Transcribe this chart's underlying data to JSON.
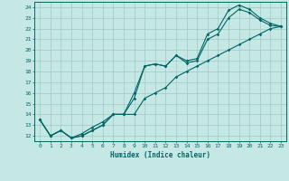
{
  "title": "",
  "xlabel": "Humidex (Indice chaleur)",
  "bg_color": "#c5e8e5",
  "grid_color": "#9dc8c4",
  "line_color": "#006666",
  "xlim": [
    -0.5,
    23.5
  ],
  "ylim": [
    11.5,
    24.5
  ],
  "xticks": [
    0,
    1,
    2,
    3,
    4,
    5,
    6,
    7,
    8,
    9,
    10,
    11,
    12,
    13,
    14,
    15,
    16,
    17,
    18,
    19,
    20,
    21,
    22,
    23
  ],
  "yticks": [
    12,
    13,
    14,
    15,
    16,
    17,
    18,
    19,
    20,
    21,
    22,
    23,
    24
  ],
  "line1_x": [
    0,
    1,
    2,
    3,
    4,
    5,
    6,
    7,
    8,
    9,
    10,
    11,
    12,
    13,
    14,
    15,
    16,
    17,
    18,
    19,
    20,
    21,
    22,
    23
  ],
  "line1_y": [
    13.5,
    12.0,
    12.5,
    11.8,
    12.0,
    12.5,
    13.0,
    14.0,
    14.0,
    15.5,
    18.5,
    18.7,
    18.5,
    19.5,
    19.0,
    19.2,
    21.5,
    22.0,
    23.7,
    24.2,
    23.8,
    23.0,
    22.5,
    22.2
  ],
  "line2_x": [
    0,
    1,
    2,
    3,
    4,
    5,
    6,
    7,
    8,
    9,
    10,
    11,
    12,
    13,
    14,
    15,
    16,
    17,
    18,
    19,
    20,
    21,
    22,
    23
  ],
  "line2_y": [
    13.5,
    12.0,
    12.5,
    11.8,
    12.0,
    12.5,
    13.0,
    14.0,
    14.0,
    16.0,
    18.5,
    18.7,
    18.5,
    19.5,
    18.8,
    19.0,
    21.0,
    21.5,
    23.0,
    23.8,
    23.5,
    22.8,
    22.3,
    22.2
  ],
  "line3_x": [
    0,
    1,
    2,
    3,
    4,
    5,
    6,
    7,
    8,
    9,
    10,
    11,
    12,
    13,
    14,
    15,
    16,
    17,
    18,
    19,
    20,
    21,
    22,
    23
  ],
  "line3_y": [
    13.5,
    12.0,
    12.5,
    11.8,
    12.2,
    12.8,
    13.3,
    14.0,
    14.0,
    14.0,
    15.5,
    16.0,
    16.5,
    17.5,
    18.0,
    18.5,
    19.0,
    19.5,
    20.0,
    20.5,
    21.0,
    21.5,
    22.0,
    22.2
  ]
}
